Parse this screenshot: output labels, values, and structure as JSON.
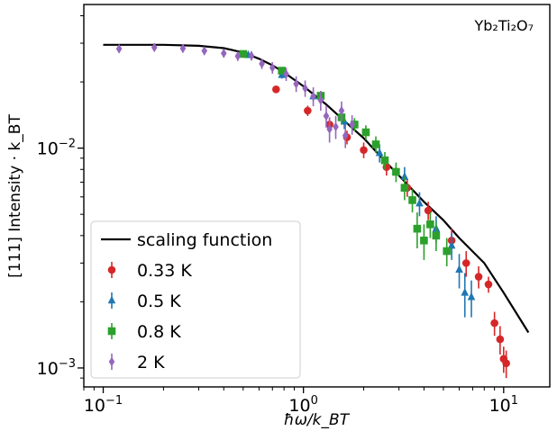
{
  "chart_data": {
    "type": "scatter",
    "x_scale": "log",
    "y_scale": "log",
    "xlim": [
      0.08,
      17
    ],
    "ylim": [
      0.00082,
      0.045
    ],
    "xlabel": "ħω/k_BT",
    "ylabel": "[111]  Intensity · k_BT",
    "annotation": "Yb₂Ti₂O₇",
    "grid": false,
    "legend_position": "lower left",
    "x_ticks": [
      {
        "value": 0.1,
        "base": "10",
        "exp": "−1"
      },
      {
        "value": 1,
        "base": "10",
        "exp": "0"
      },
      {
        "value": 10,
        "base": "10",
        "exp": "1"
      }
    ],
    "y_ticks": [
      {
        "value": 0.001,
        "base": "10",
        "exp": "−3"
      },
      {
        "value": 0.01,
        "base": "10",
        "exp": "−2"
      }
    ],
    "series": [
      {
        "name": "scaling function",
        "kind": "line",
        "color": "#000000",
        "points": [
          [
            0.1,
            0.0295
          ],
          [
            0.2,
            0.0295
          ],
          [
            0.3,
            0.0292
          ],
          [
            0.4,
            0.0285
          ],
          [
            0.5,
            0.0272
          ],
          [
            0.6,
            0.0255
          ],
          [
            0.7,
            0.0238
          ],
          [
            0.8,
            0.0221
          ],
          [
            1.0,
            0.0191
          ],
          [
            1.3,
            0.0158
          ],
          [
            1.6,
            0.0133
          ],
          [
            2.0,
            0.0111
          ],
          [
            2.5,
            0.0089
          ],
          [
            3.0,
            0.0075
          ],
          [
            4.0,
            0.0057
          ],
          [
            5.0,
            0.0047
          ],
          [
            6.0,
            0.0039
          ],
          [
            8.0,
            0.003
          ],
          [
            10.0,
            0.0022
          ],
          [
            13.3,
            0.00145
          ]
        ]
      },
      {
        "name": "0.33 K",
        "kind": "points",
        "marker": "circle",
        "color": "#d62728",
        "points": [
          [
            0.73,
            0.0185,
            0.0006
          ],
          [
            1.05,
            0.0148,
            0.0008
          ],
          [
            1.35,
            0.0128,
            0.0009
          ],
          [
            1.65,
            0.0112,
            0.0008
          ],
          [
            2.0,
            0.0098,
            0.0008
          ],
          [
            2.6,
            0.0082,
            0.0007
          ],
          [
            3.3,
            0.0066,
            0.0006
          ],
          [
            4.2,
            0.0052,
            0.0005
          ],
          [
            5.5,
            0.0038,
            0.0005
          ],
          [
            6.5,
            0.003,
            0.0004
          ],
          [
            7.5,
            0.0026,
            0.0003
          ],
          [
            8.4,
            0.0024,
            0.0002
          ],
          [
            9.0,
            0.0016,
            0.0002
          ],
          [
            9.6,
            0.00135,
            0.0002
          ],
          [
            10.0,
            0.0011,
            0.00015
          ],
          [
            10.3,
            0.00105,
            0.00015
          ]
        ]
      },
      {
        "name": "0.5 K",
        "kind": "points",
        "marker": "triangle",
        "color": "#1f77b4",
        "points": [
          [
            0.53,
            0.0265,
            0.0007
          ],
          [
            0.78,
            0.0215,
            0.0008
          ],
          [
            1.12,
            0.0172,
            0.0009
          ],
          [
            1.6,
            0.0132,
            0.001
          ],
          [
            2.4,
            0.0095,
            0.0009
          ],
          [
            3.2,
            0.0074,
            0.0008
          ],
          [
            3.8,
            0.0056,
            0.0007
          ],
          [
            4.6,
            0.0043,
            0.0006
          ],
          [
            5.5,
            0.0036,
            0.0005
          ],
          [
            6.0,
            0.0028,
            0.0005
          ],
          [
            6.4,
            0.0022,
            0.0005
          ],
          [
            6.9,
            0.0021,
            0.0004
          ]
        ]
      },
      {
        "name": "0.8 K",
        "kind": "points",
        "marker": "square",
        "color": "#2ca02c",
        "points": [
          [
            0.5,
            0.0268,
            0.0007
          ],
          [
            0.78,
            0.0225,
            0.0007
          ],
          [
            1.22,
            0.0173,
            0.0009
          ],
          [
            1.55,
            0.0138,
            0.001
          ],
          [
            1.8,
            0.0128,
            0.0009
          ],
          [
            2.05,
            0.0118,
            0.0009
          ],
          [
            2.3,
            0.0104,
            0.0009
          ],
          [
            2.55,
            0.0088,
            0.0008
          ],
          [
            2.9,
            0.0078,
            0.0008
          ],
          [
            3.2,
            0.0066,
            0.0008
          ],
          [
            3.5,
            0.0058,
            0.0007
          ],
          [
            3.7,
            0.0043,
            0.0008
          ],
          [
            4.0,
            0.0038,
            0.0007
          ],
          [
            4.3,
            0.0045,
            0.0006
          ],
          [
            4.6,
            0.004,
            0.0006
          ],
          [
            5.2,
            0.0034,
            0.0005
          ]
        ]
      },
      {
        "name": "2 K",
        "kind": "points",
        "marker": "diamond",
        "color": "#9467bd",
        "points": [
          [
            0.12,
            0.0283,
            0.0012
          ],
          [
            0.18,
            0.0287,
            0.0012
          ],
          [
            0.25,
            0.0284,
            0.0012
          ],
          [
            0.32,
            0.0277,
            0.0012
          ],
          [
            0.4,
            0.027,
            0.0012
          ],
          [
            0.47,
            0.0262,
            0.0013
          ],
          [
            0.55,
            0.0263,
            0.0013
          ],
          [
            0.62,
            0.0242,
            0.0013
          ],
          [
            0.7,
            0.0232,
            0.0014
          ],
          [
            0.82,
            0.0217,
            0.0015
          ],
          [
            0.92,
            0.0196,
            0.0016
          ],
          [
            1.02,
            0.0187,
            0.0016
          ],
          [
            1.12,
            0.0172,
            0.0017
          ],
          [
            1.22,
            0.0165,
            0.0017
          ],
          [
            1.3,
            0.014,
            0.0016
          ],
          [
            1.35,
            0.0122,
            0.0016
          ],
          [
            1.45,
            0.0125,
            0.0015
          ],
          [
            1.55,
            0.0148,
            0.0015
          ],
          [
            1.62,
            0.0114,
            0.0014
          ],
          [
            1.75,
            0.0128,
            0.0013
          ]
        ]
      }
    ]
  }
}
